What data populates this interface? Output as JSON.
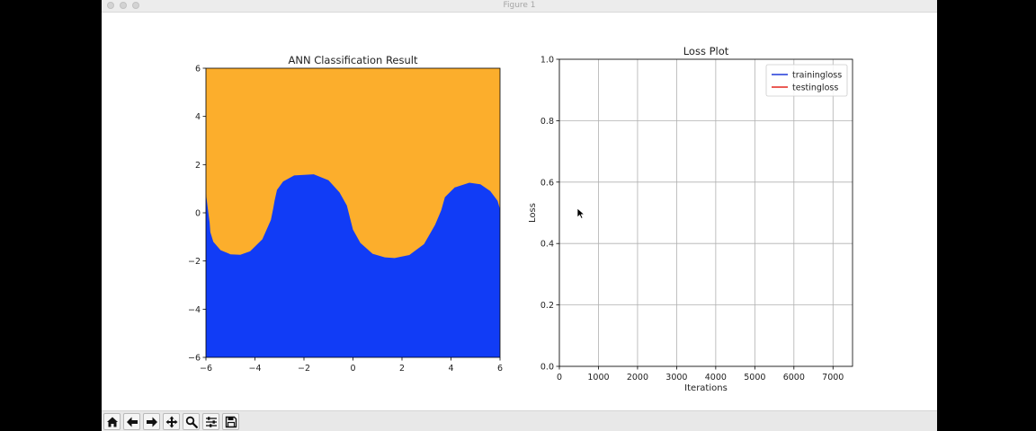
{
  "window": {
    "title": "Figure 1"
  },
  "toolbar": {
    "buttons": [
      {
        "name": "home-button",
        "icon": "home-icon"
      },
      {
        "name": "back-button",
        "icon": "arrow-left-icon"
      },
      {
        "name": "forward-button",
        "icon": "arrow-right-icon"
      },
      {
        "name": "pan-button",
        "icon": "move-icon"
      },
      {
        "name": "zoom-button",
        "icon": "magnifier-icon"
      },
      {
        "name": "configure-subplots-button",
        "icon": "sliders-icon"
      },
      {
        "name": "save-button",
        "icon": "floppy-disk-icon"
      }
    ]
  },
  "colors": {
    "class_a": "#fcae2c",
    "class_b": "#113cf6",
    "training_line": "#1f38d8",
    "testing_line": "#e3261e"
  },
  "chart_data": [
    {
      "type": "heatmap",
      "title": "ANN Classification Result",
      "xlabel": "",
      "ylabel": "",
      "xlim": [
        -6,
        6
      ],
      "ylim": [
        -6,
        6
      ],
      "xticks": [
        "−6",
        "−4",
        "−2",
        "0",
        "2",
        "4",
        "6"
      ],
      "yticks": [
        "−6",
        "−4",
        "−2",
        "0",
        "2",
        "4",
        "6"
      ],
      "regions": [
        {
          "color": "#fcae2c",
          "side": "above boundary"
        },
        {
          "color": "#113cf6",
          "side": "below boundary"
        }
      ],
      "boundary": {
        "x": [
          -6,
          -5.9,
          -5.85,
          -5.82,
          -5.7,
          -5.4,
          -5.0,
          -4.6,
          -4.2,
          -3.7,
          -3.35,
          -3.25,
          -3.2,
          -3.1,
          -2.85,
          -2.4,
          -1.6,
          -1.0,
          -0.55,
          -0.25,
          0.0,
          0.3,
          0.8,
          1.3,
          1.7,
          2.3,
          2.9,
          3.35,
          3.6,
          3.75,
          4.15,
          4.75,
          5.2,
          5.6,
          5.9,
          6.0
        ],
        "y": [
          0.8,
          0.0,
          -0.4,
          -0.8,
          -1.2,
          -1.55,
          -1.72,
          -1.74,
          -1.6,
          -1.1,
          -0.3,
          0.2,
          0.5,
          0.95,
          1.3,
          1.55,
          1.6,
          1.35,
          0.85,
          0.3,
          -0.7,
          -1.25,
          -1.7,
          -1.85,
          -1.88,
          -1.75,
          -1.3,
          -0.5,
          0.1,
          0.65,
          1.05,
          1.25,
          1.18,
          0.9,
          0.5,
          0.15
        ]
      },
      "grid": false
    },
    {
      "type": "line",
      "title": "Loss Plot",
      "xlabel": "Iterations",
      "ylabel": "Loss",
      "xlim": [
        0,
        7500
      ],
      "ylim": [
        0,
        1
      ],
      "xticks": [
        "0",
        "1000",
        "2000",
        "3000",
        "4000",
        "5000",
        "6000",
        "7000"
      ],
      "yticks": [
        "0.0",
        "0.2",
        "0.4",
        "0.6",
        "0.8",
        "1.0"
      ],
      "series": [
        {
          "name": "trainingloss",
          "color": "#1f38d8",
          "x": [],
          "y": []
        },
        {
          "name": "testingloss",
          "color": "#e3261e",
          "x": [],
          "y": []
        }
      ],
      "legend": "top-right",
      "grid": true
    }
  ]
}
